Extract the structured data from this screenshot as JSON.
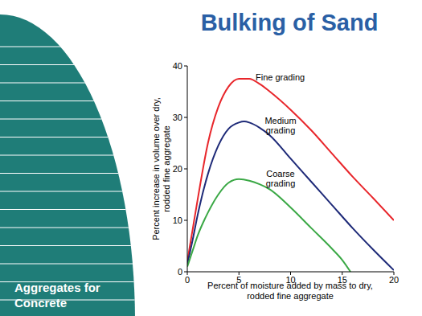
{
  "side_label": "Aggregates for Concrete",
  "chart_data": {
    "type": "line",
    "title": "Bulking of Sand",
    "x_label": "Percent of moisture added by mass to dry, rodded fine aggregate",
    "y_label": "Percent increase in volume over dry, rodded fine aggregate",
    "xlim": [
      0,
      20
    ],
    "ylim": [
      0,
      40
    ],
    "xticks": [
      0,
      5,
      10,
      15,
      20
    ],
    "yticks": [
      0,
      10,
      20,
      30,
      40
    ],
    "grid": false,
    "series": [
      {
        "name": "Fine grading",
        "color": "#e8262b",
        "x": [
          0,
          0.5,
          1,
          2,
          3,
          4,
          5,
          6,
          7,
          8,
          10,
          12,
          14,
          16,
          18,
          20
        ],
        "values": [
          2,
          8,
          14,
          25,
          32,
          36,
          37.5,
          37.5,
          36.5,
          35,
          31.5,
          27.5,
          23,
          18.5,
          14.3,
          10
        ]
      },
      {
        "name": "Medium grading",
        "color": "#1e2a78",
        "x": [
          0,
          0.5,
          1,
          2,
          3,
          4,
          5,
          5.5,
          6,
          7,
          8,
          10,
          12,
          14,
          16,
          18,
          20
        ],
        "values": [
          1.5,
          6,
          11,
          19,
          24.5,
          27.8,
          29,
          29.2,
          29,
          28,
          26.5,
          22,
          17.5,
          13,
          8.5,
          4.3,
          0.3
        ]
      },
      {
        "name": "Coarse grading",
        "color": "#3aa845",
        "x": [
          0,
          0.5,
          1,
          2,
          3,
          4,
          5,
          6,
          7,
          8,
          10,
          12,
          14,
          15,
          15.8
        ],
        "values": [
          1,
          4,
          7,
          11.5,
          15,
          17.3,
          18,
          17.7,
          17,
          16,
          12.5,
          8.5,
          4.5,
          2.3,
          0
        ]
      }
    ]
  }
}
